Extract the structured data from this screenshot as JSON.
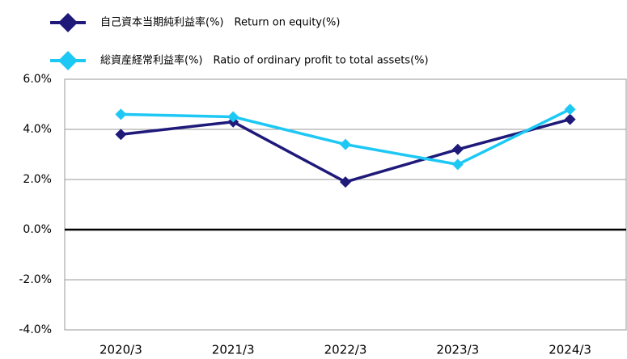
{
  "chart_data": {
    "type": "line",
    "categories": [
      "2020/3",
      "2021/3",
      "2022/3",
      "2023/3",
      "2024/3"
    ],
    "series": [
      {
        "name": "自己資本当期純利益率(%)　Return on equity(%)",
        "color": "#1f1a7a",
        "values": [
          3.8,
          4.3,
          1.9,
          3.2,
          4.4
        ]
      },
      {
        "name": "総資産経常利益率(%)　Ratio of ordinary profit to total  assets(%)",
        "color": "#1ec8f5",
        "values": [
          4.6,
          4.5,
          3.4,
          2.6,
          4.8
        ]
      }
    ],
    "ylim": [
      -4,
      6
    ],
    "yticks": [
      {
        "value": -4,
        "label": "-4.0%"
      },
      {
        "value": -2,
        "label": "-2.0%"
      },
      {
        "value": 0,
        "label": "0.0%"
      },
      {
        "value": 2,
        "label": "2.0%"
      },
      {
        "value": 4,
        "label": "4.0%"
      },
      {
        "value": 6,
        "label": "6.0%"
      }
    ],
    "grid": true,
    "legend": "top-left"
  }
}
